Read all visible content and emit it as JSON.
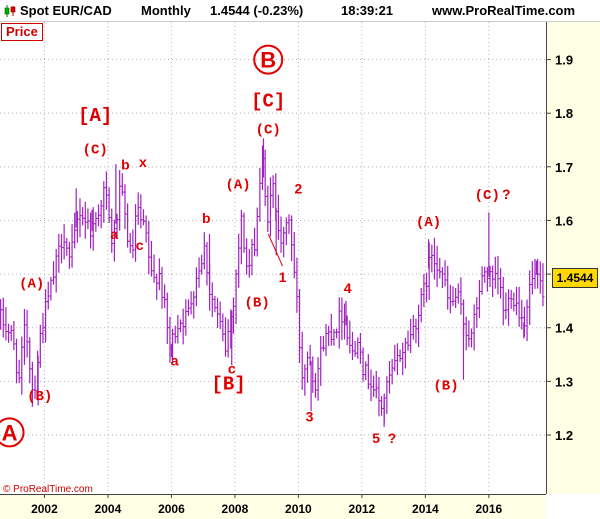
{
  "header": {
    "instrument": "Spot EUR/CAD",
    "timeframe": "Monthly",
    "quote": "1.4544 (-0.23%)",
    "time": "18:39:21",
    "site": "www.ProRealTime.com"
  },
  "price_tag": "Price",
  "copyright": "© ProRealTime.com",
  "colors": {
    "candles": "#a020c0",
    "labels": "#e00000",
    "grid": "#b4b4b4",
    "last_price_bg": "#ffd800"
  },
  "chart_data": {
    "type": "bar",
    "subtype": "ohlc-monthly",
    "series_name": "Spot EUR/CAD",
    "last_price": "1.4544",
    "ylim": [
      1.09,
      1.97
    ],
    "y_ticks": [
      1.2,
      1.3,
      1.4,
      1.5,
      1.6,
      1.7,
      1.8,
      1.9
    ],
    "y_tick_labels": [
      "1.2",
      "1.3",
      "1.4",
      "1.5",
      "1.6",
      "1.7",
      "1.8",
      "1.9"
    ],
    "xlim": [
      2000.6,
      2017.8
    ],
    "x_ticks": [
      2002,
      2004,
      2006,
      2008,
      2010,
      2012,
      2014,
      2016
    ],
    "x_tick_labels": [
      "2002",
      "2004",
      "2006",
      "2008",
      "2010",
      "2012",
      "2014",
      "2016"
    ],
    "grid": true,
    "path": [
      [
        2000.6,
        1.42
      ],
      [
        2001.0,
        1.38
      ],
      [
        2001.2,
        1.3
      ],
      [
        2001.4,
        1.41
      ],
      [
        2001.65,
        1.27
      ],
      [
        2001.9,
        1.4
      ],
      [
        2002.3,
        1.5
      ],
      [
        2002.6,
        1.58
      ],
      [
        2002.8,
        1.52
      ],
      [
        2003.1,
        1.62
      ],
      [
        2003.5,
        1.58
      ],
      [
        2003.9,
        1.66
      ],
      [
        2004.15,
        1.55
      ],
      [
        2004.4,
        1.66
      ],
      [
        2004.55,
        1.6
      ],
      [
        2004.75,
        1.52
      ],
      [
        2004.9,
        1.62
      ],
      [
        2005.2,
        1.57
      ],
      [
        2005.4,
        1.48
      ],
      [
        2005.6,
        1.51
      ],
      [
        2005.8,
        1.43
      ],
      [
        2005.95,
        1.36
      ],
      [
        2006.2,
        1.41
      ],
      [
        2006.5,
        1.42
      ],
      [
        2006.8,
        1.5
      ],
      [
        2007.05,
        1.55
      ],
      [
        2007.2,
        1.47
      ],
      [
        2007.5,
        1.41
      ],
      [
        2007.7,
        1.36
      ],
      [
        2007.95,
        1.45
      ],
      [
        2008.2,
        1.6
      ],
      [
        2008.4,
        1.5
      ],
      [
        2008.65,
        1.57
      ],
      [
        2008.85,
        1.72
      ],
      [
        2009.0,
        1.6
      ],
      [
        2009.2,
        1.66
      ],
      [
        2009.5,
        1.55
      ],
      [
        2009.7,
        1.61
      ],
      [
        2009.95,
        1.45
      ],
      [
        2010.1,
        1.31
      ],
      [
        2010.35,
        1.36
      ],
      [
        2010.5,
        1.29
      ],
      [
        2010.8,
        1.38
      ],
      [
        2011.15,
        1.4
      ],
      [
        2011.4,
        1.43
      ],
      [
        2011.75,
        1.34
      ],
      [
        2011.9,
        1.4
      ],
      [
        2012.05,
        1.32
      ],
      [
        2012.3,
        1.3
      ],
      [
        2012.6,
        1.25
      ],
      [
        2012.9,
        1.31
      ],
      [
        2013.2,
        1.35
      ],
      [
        2013.5,
        1.38
      ],
      [
        2013.8,
        1.43
      ],
      [
        2014.0,
        1.48
      ],
      [
        2014.2,
        1.54
      ],
      [
        2014.5,
        1.51
      ],
      [
        2014.75,
        1.44
      ],
      [
        2015.0,
        1.46
      ],
      [
        2015.25,
        1.4
      ],
      [
        2015.45,
        1.38
      ],
      [
        2015.7,
        1.47
      ],
      [
        2015.9,
        1.51
      ],
      [
        2016.1,
        1.48
      ],
      [
        2016.3,
        1.49
      ],
      [
        2016.5,
        1.42
      ],
      [
        2016.7,
        1.47
      ],
      [
        2016.9,
        1.44
      ],
      [
        2017.1,
        1.41
      ],
      [
        2017.3,
        1.48
      ],
      [
        2017.5,
        1.5
      ],
      [
        2017.7,
        1.45
      ]
    ],
    "extremes": [
      [
        2001.8,
        1.255
      ],
      [
        2003.0,
        1.66
      ],
      [
        2003.5,
        1.62
      ],
      [
        2004.25,
        1.705
      ],
      [
        2005.5,
        1.495
      ],
      [
        2006.0,
        1.345
      ],
      [
        2007.2,
        1.575
      ],
      [
        2007.9,
        1.33
      ],
      [
        2008.9,
        1.753
      ],
      [
        2009.3,
        1.535
      ],
      [
        2010.4,
        1.245
      ],
      [
        2011.5,
        1.45
      ],
      [
        2012.7,
        1.215
      ],
      [
        2014.1,
        1.565
      ],
      [
        2015.2,
        1.303
      ],
      [
        2016.0,
        1.615
      ],
      [
        2017.5,
        1.525
      ],
      [
        2017.1,
        1.38
      ]
    ],
    "annotations": [
      {
        "text": "A",
        "x": 2000.9,
        "y": 1.19,
        "style": "circled"
      },
      {
        "text": "(A)",
        "x": 2001.6,
        "y": 1.475,
        "style": "plain"
      },
      {
        "text": "(B)",
        "x": 2001.85,
        "y": 1.265,
        "style": "plain"
      },
      {
        "text": "[A]",
        "x": 2003.6,
        "y": 1.785,
        "style": "bracket"
      },
      {
        "text": "(C)",
        "x": 2003.6,
        "y": 1.725,
        "style": "plain"
      },
      {
        "text": "b",
        "x": 2004.55,
        "y": 1.695,
        "style": "plain"
      },
      {
        "text": "x",
        "x": 2005.1,
        "y": 1.7,
        "style": "plain"
      },
      {
        "text": "a",
        "x": 2004.2,
        "y": 1.565,
        "style": "plain"
      },
      {
        "text": "c",
        "x": 2005.0,
        "y": 1.545,
        "style": "plain"
      },
      {
        "text": "a",
        "x": 2006.1,
        "y": 1.33,
        "style": "plain"
      },
      {
        "text": "b",
        "x": 2007.1,
        "y": 1.595,
        "style": "plain"
      },
      {
        "text": "c",
        "x": 2007.9,
        "y": 1.315,
        "style": "plain"
      },
      {
        "text": "[B]",
        "x": 2007.8,
        "y": 1.285,
        "style": "bracket"
      },
      {
        "text": "B",
        "x": 2009.05,
        "y": 1.885,
        "style": "circled"
      },
      {
        "text": "[C]",
        "x": 2009.05,
        "y": 1.812,
        "style": "bracket"
      },
      {
        "text": "(C)",
        "x": 2009.05,
        "y": 1.762,
        "style": "plain"
      },
      {
        "text": "(A)",
        "x": 2008.1,
        "y": 1.66,
        "style": "plain"
      },
      {
        "text": "(B)",
        "x": 2008.7,
        "y": 1.44,
        "style": "plain"
      },
      {
        "text": "2",
        "x": 2010.0,
        "y": 1.65,
        "style": "plain"
      },
      {
        "text": "1",
        "x": 2009.5,
        "y": 1.485,
        "style": "plain"
      },
      {
        "text": "3",
        "x": 2010.35,
        "y": 1.225,
        "style": "plain"
      },
      {
        "text": "4",
        "x": 2011.55,
        "y": 1.465,
        "style": "plain"
      },
      {
        "text": "5",
        "x": 2012.45,
        "y": 1.185,
        "style": "plain"
      },
      {
        "text": "?",
        "x": 2012.95,
        "y": 1.185,
        "style": "plain"
      },
      {
        "text": "(A)",
        "x": 2014.1,
        "y": 1.59,
        "style": "plain"
      },
      {
        "text": "(B)",
        "x": 2014.65,
        "y": 1.285,
        "style": "plain"
      },
      {
        "text": "(C)",
        "x": 2015.95,
        "y": 1.64,
        "style": "plain"
      },
      {
        "text": "?",
        "x": 2016.55,
        "y": 1.64,
        "style": "plain"
      }
    ],
    "wave1_line": [
      [
        2009.05,
        1.575
      ],
      [
        2009.5,
        1.515
      ]
    ]
  }
}
